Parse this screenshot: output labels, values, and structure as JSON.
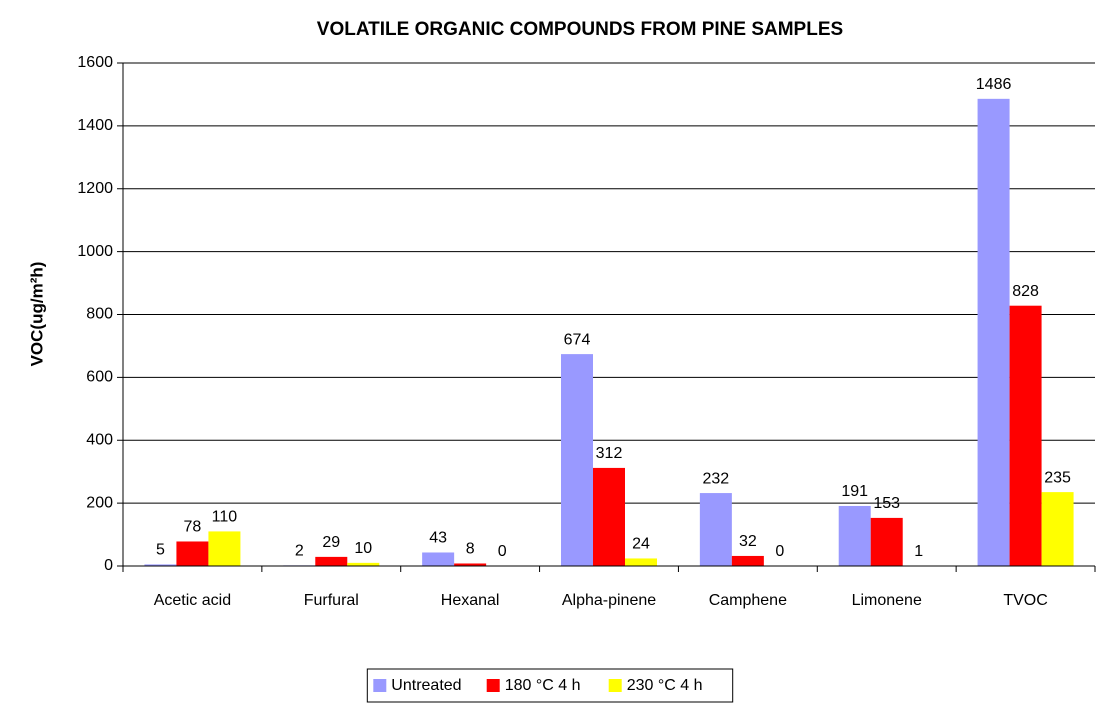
{
  "chart_data": {
    "type": "bar",
    "title": "VOLATILE ORGANIC COMPOUNDS FROM PINE SAMPLES",
    "y_label": "VOC(ug/m²h)",
    "categories": [
      "Acetic acid",
      "Furfural",
      "Hexanal",
      "Alpha-pinene",
      "Camphene",
      "Limonene",
      "TVOC"
    ],
    "series": [
      {
        "name": "Untreated",
        "color": "#9999ff",
        "values": [
          5,
          2,
          43,
          674,
          232,
          191,
          1486
        ]
      },
      {
        "name": "180 °C 4 h",
        "color": "#ff0000",
        "values": [
          78,
          29,
          8,
          312,
          32,
          153,
          828
        ]
      },
      {
        "name": "230 °C 4 h",
        "color": "#ffff00",
        "values": [
          110,
          10,
          0,
          24,
          0,
          1,
          235
        ]
      }
    ],
    "ylim": [
      0,
      1600
    ],
    "yticks": [
      0,
      200,
      400,
      600,
      800,
      1000,
      1200,
      1400,
      1600
    ],
    "grid": true,
    "legend": "bottom"
  }
}
